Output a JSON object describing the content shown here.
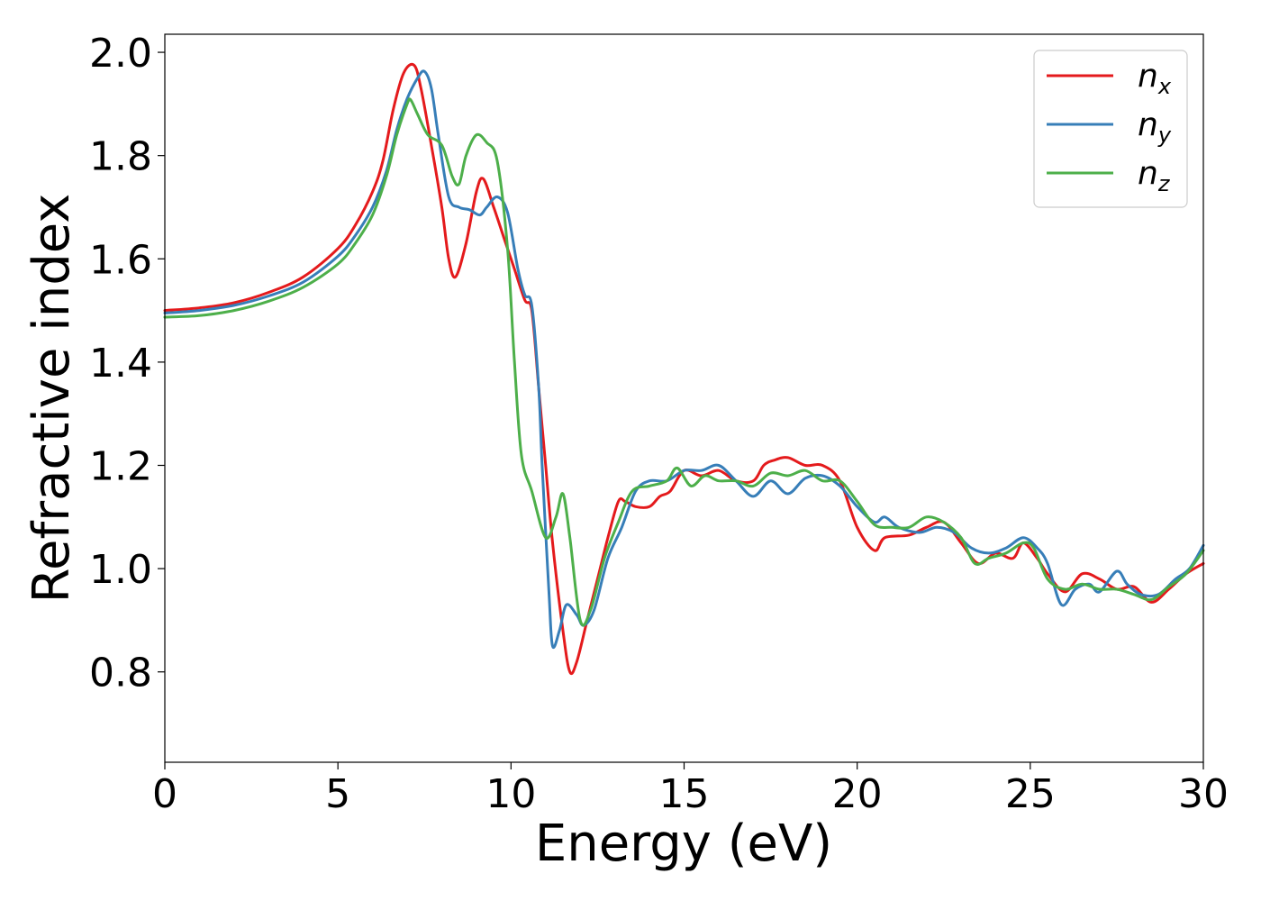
{
  "chart_data": {
    "type": "line",
    "xlabel": "Energy (eV)",
    "ylabel": "Refractive index",
    "xlim": [
      0,
      30
    ],
    "ylim": [
      0.625,
      2.035
    ],
    "xticks": [
      0,
      5,
      10,
      15,
      20,
      25,
      30
    ],
    "xtick_labels": [
      "0",
      "5",
      "10",
      "15",
      "20",
      "25",
      "30"
    ],
    "yticks": [
      0.8,
      1.0,
      1.2,
      1.4,
      1.6,
      1.8,
      2.0
    ],
    "ytick_labels": [
      "0.8",
      "1.0",
      "1.2",
      "1.4",
      "1.6",
      "1.8",
      "2.0"
    ],
    "grid": false,
    "legend_position": "top-right",
    "series": [
      {
        "name": "n",
        "subscript": "x",
        "color": "#e41a1c",
        "points": [
          [
            0,
            1.5
          ],
          [
            1,
            1.505
          ],
          [
            2,
            1.515
          ],
          [
            3,
            1.535
          ],
          [
            4,
            1.565
          ],
          [
            5,
            1.62
          ],
          [
            5.5,
            1.665
          ],
          [
            6,
            1.73
          ],
          [
            6.3,
            1.79
          ],
          [
            6.6,
            1.89
          ],
          [
            6.9,
            1.96
          ],
          [
            7.2,
            1.975
          ],
          [
            7.4,
            1.93
          ],
          [
            7.7,
            1.82
          ],
          [
            8.0,
            1.7
          ],
          [
            8.2,
            1.6
          ],
          [
            8.4,
            1.565
          ],
          [
            8.7,
            1.63
          ],
          [
            9.0,
            1.73
          ],
          [
            9.2,
            1.755
          ],
          [
            9.5,
            1.7
          ],
          [
            9.8,
            1.64
          ],
          [
            10.1,
            1.58
          ],
          [
            10.4,
            1.52
          ],
          [
            10.6,
            1.5
          ],
          [
            10.8,
            1.35
          ],
          [
            11.0,
            1.2
          ],
          [
            11.2,
            1.05
          ],
          [
            11.5,
            0.88
          ],
          [
            11.7,
            0.8
          ],
          [
            11.9,
            0.82
          ],
          [
            12.2,
            0.9
          ],
          [
            12.5,
            0.98
          ],
          [
            12.8,
            1.06
          ],
          [
            13.1,
            1.13
          ],
          [
            13.3,
            1.13
          ],
          [
            13.6,
            1.12
          ],
          [
            14.0,
            1.12
          ],
          [
            14.3,
            1.14
          ],
          [
            14.6,
            1.15
          ],
          [
            15.0,
            1.19
          ],
          [
            15.5,
            1.18
          ],
          [
            16.0,
            1.19
          ],
          [
            16.5,
            1.17
          ],
          [
            17.0,
            1.17
          ],
          [
            17.3,
            1.2
          ],
          [
            17.6,
            1.21
          ],
          [
            18.0,
            1.215
          ],
          [
            18.5,
            1.2
          ],
          [
            19.0,
            1.2
          ],
          [
            19.5,
            1.17
          ],
          [
            20.0,
            1.08
          ],
          [
            20.5,
            1.035
          ],
          [
            20.8,
            1.06
          ],
          [
            21.5,
            1.065
          ],
          [
            22.0,
            1.08
          ],
          [
            22.5,
            1.09
          ],
          [
            23.0,
            1.05
          ],
          [
            23.5,
            1.01
          ],
          [
            24.0,
            1.03
          ],
          [
            24.5,
            1.02
          ],
          [
            24.8,
            1.05
          ],
          [
            25.2,
            1.02
          ],
          [
            25.5,
            0.99
          ],
          [
            26.0,
            0.955
          ],
          [
            26.5,
            0.99
          ],
          [
            27.0,
            0.98
          ],
          [
            27.5,
            0.96
          ],
          [
            28.0,
            0.965
          ],
          [
            28.5,
            0.935
          ],
          [
            29.0,
            0.96
          ],
          [
            29.5,
            0.99
          ],
          [
            30,
            1.01
          ]
        ]
      },
      {
        "name": "n",
        "subscript": "y",
        "color": "#377eb8",
        "points": [
          [
            0,
            1.495
          ],
          [
            1,
            1.5
          ],
          [
            2,
            1.51
          ],
          [
            3,
            1.528
          ],
          [
            4,
            1.555
          ],
          [
            5,
            1.605
          ],
          [
            5.5,
            1.645
          ],
          [
            6,
            1.7
          ],
          [
            6.4,
            1.77
          ],
          [
            6.7,
            1.85
          ],
          [
            7.0,
            1.91
          ],
          [
            7.3,
            1.95
          ],
          [
            7.5,
            1.963
          ],
          [
            7.7,
            1.93
          ],
          [
            7.9,
            1.84
          ],
          [
            8.2,
            1.72
          ],
          [
            8.5,
            1.7
          ],
          [
            8.8,
            1.695
          ],
          [
            9.1,
            1.685
          ],
          [
            9.3,
            1.7
          ],
          [
            9.6,
            1.72
          ],
          [
            9.9,
            1.69
          ],
          [
            10.2,
            1.58
          ],
          [
            10.4,
            1.53
          ],
          [
            10.6,
            1.51
          ],
          [
            10.8,
            1.35
          ],
          [
            10.9,
            1.2
          ],
          [
            11.1,
            0.95
          ],
          [
            11.2,
            0.85
          ],
          [
            11.4,
            0.88
          ],
          [
            11.6,
            0.93
          ],
          [
            11.9,
            0.91
          ],
          [
            12.1,
            0.89
          ],
          [
            12.4,
            0.92
          ],
          [
            12.8,
            1.02
          ],
          [
            13.2,
            1.08
          ],
          [
            13.6,
            1.15
          ],
          [
            14.0,
            1.17
          ],
          [
            14.5,
            1.17
          ],
          [
            15.0,
            1.19
          ],
          [
            15.5,
            1.19
          ],
          [
            16.0,
            1.2
          ],
          [
            16.5,
            1.17
          ],
          [
            17.0,
            1.14
          ],
          [
            17.5,
            1.17
          ],
          [
            18.0,
            1.145
          ],
          [
            18.5,
            1.175
          ],
          [
            19.0,
            1.18
          ],
          [
            19.5,
            1.16
          ],
          [
            20.0,
            1.12
          ],
          [
            20.5,
            1.09
          ],
          [
            20.8,
            1.1
          ],
          [
            21.2,
            1.08
          ],
          [
            21.8,
            1.07
          ],
          [
            22.3,
            1.08
          ],
          [
            22.8,
            1.07
          ],
          [
            23.3,
            1.04
          ],
          [
            23.8,
            1.03
          ],
          [
            24.3,
            1.04
          ],
          [
            24.8,
            1.06
          ],
          [
            25.2,
            1.04
          ],
          [
            25.5,
            1.01
          ],
          [
            25.9,
            0.93
          ],
          [
            26.3,
            0.96
          ],
          [
            26.7,
            0.97
          ],
          [
            27.0,
            0.955
          ],
          [
            27.5,
            0.995
          ],
          [
            27.8,
            0.97
          ],
          [
            28.2,
            0.95
          ],
          [
            28.7,
            0.95
          ],
          [
            29.2,
            0.98
          ],
          [
            29.6,
            1.0
          ],
          [
            30,
            1.045
          ]
        ]
      },
      {
        "name": "n",
        "subscript": "z",
        "color": "#4daf4a",
        "points": [
          [
            0,
            1.487
          ],
          [
            1,
            1.49
          ],
          [
            2,
            1.5
          ],
          [
            3,
            1.518
          ],
          [
            4,
            1.545
          ],
          [
            5,
            1.59
          ],
          [
            5.5,
            1.63
          ],
          [
            6,
            1.685
          ],
          [
            6.4,
            1.76
          ],
          [
            6.7,
            1.84
          ],
          [
            7.0,
            1.9
          ],
          [
            7.1,
            1.908
          ],
          [
            7.3,
            1.88
          ],
          [
            7.6,
            1.84
          ],
          [
            8.0,
            1.82
          ],
          [
            8.3,
            1.76
          ],
          [
            8.5,
            1.745
          ],
          [
            8.7,
            1.8
          ],
          [
            9.0,
            1.84
          ],
          [
            9.3,
            1.825
          ],
          [
            9.6,
            1.79
          ],
          [
            9.9,
            1.62
          ],
          [
            10.1,
            1.4
          ],
          [
            10.3,
            1.22
          ],
          [
            10.6,
            1.15
          ],
          [
            11.0,
            1.06
          ],
          [
            11.3,
            1.1
          ],
          [
            11.5,
            1.145
          ],
          [
            11.7,
            1.06
          ],
          [
            12.0,
            0.9
          ],
          [
            12.3,
            0.92
          ],
          [
            12.7,
            1.02
          ],
          [
            13.1,
            1.09
          ],
          [
            13.5,
            1.15
          ],
          [
            14.0,
            1.16
          ],
          [
            14.5,
            1.17
          ],
          [
            14.8,
            1.195
          ],
          [
            15.2,
            1.16
          ],
          [
            15.6,
            1.18
          ],
          [
            16.0,
            1.17
          ],
          [
            16.5,
            1.17
          ],
          [
            17.0,
            1.16
          ],
          [
            17.5,
            1.185
          ],
          [
            18.0,
            1.18
          ],
          [
            18.5,
            1.19
          ],
          [
            19.0,
            1.17
          ],
          [
            19.5,
            1.17
          ],
          [
            20.0,
            1.13
          ],
          [
            20.5,
            1.085
          ],
          [
            21.0,
            1.08
          ],
          [
            21.5,
            1.08
          ],
          [
            22.0,
            1.1
          ],
          [
            22.5,
            1.09
          ],
          [
            23.0,
            1.06
          ],
          [
            23.4,
            1.01
          ],
          [
            23.8,
            1.02
          ],
          [
            24.3,
            1.03
          ],
          [
            24.8,
            1.05
          ],
          [
            25.1,
            1.04
          ],
          [
            25.5,
            0.98
          ],
          [
            26.0,
            0.96
          ],
          [
            26.5,
            0.97
          ],
          [
            27.0,
            0.96
          ],
          [
            27.5,
            0.96
          ],
          [
            28.0,
            0.95
          ],
          [
            28.5,
            0.94
          ],
          [
            29.0,
            0.965
          ],
          [
            29.5,
            0.99
          ],
          [
            30,
            1.035
          ]
        ]
      }
    ]
  }
}
